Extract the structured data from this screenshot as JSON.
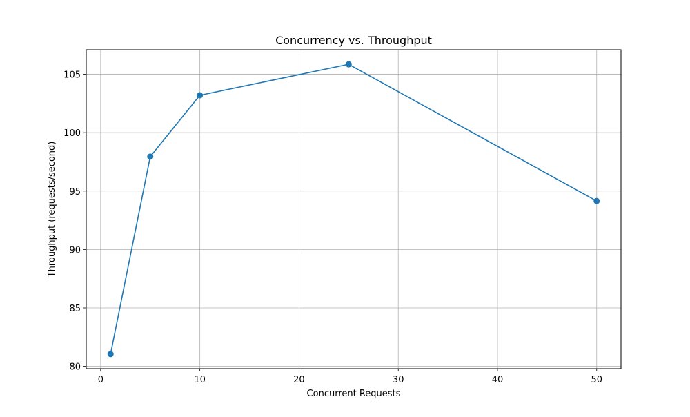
{
  "chart_data": {
    "type": "line",
    "title": "Concurrency vs. Throughput",
    "xlabel": "Concurrent Requests",
    "ylabel": "Throughput (requests/second)",
    "xlim": [
      -1.45,
      52.45
    ],
    "ylim": [
      79.8,
      107.1
    ],
    "xticks": [
      0,
      10,
      20,
      30,
      40,
      50
    ],
    "yticks": [
      80,
      85,
      90,
      95,
      100,
      105
    ],
    "grid": true,
    "series": [
      {
        "x": [
          1,
          5,
          10,
          25,
          50
        ],
        "y": [
          81.05,
          97.95,
          103.2,
          105.85,
          94.15
        ],
        "color": "#1f77b4",
        "marker": "circle"
      }
    ]
  }
}
